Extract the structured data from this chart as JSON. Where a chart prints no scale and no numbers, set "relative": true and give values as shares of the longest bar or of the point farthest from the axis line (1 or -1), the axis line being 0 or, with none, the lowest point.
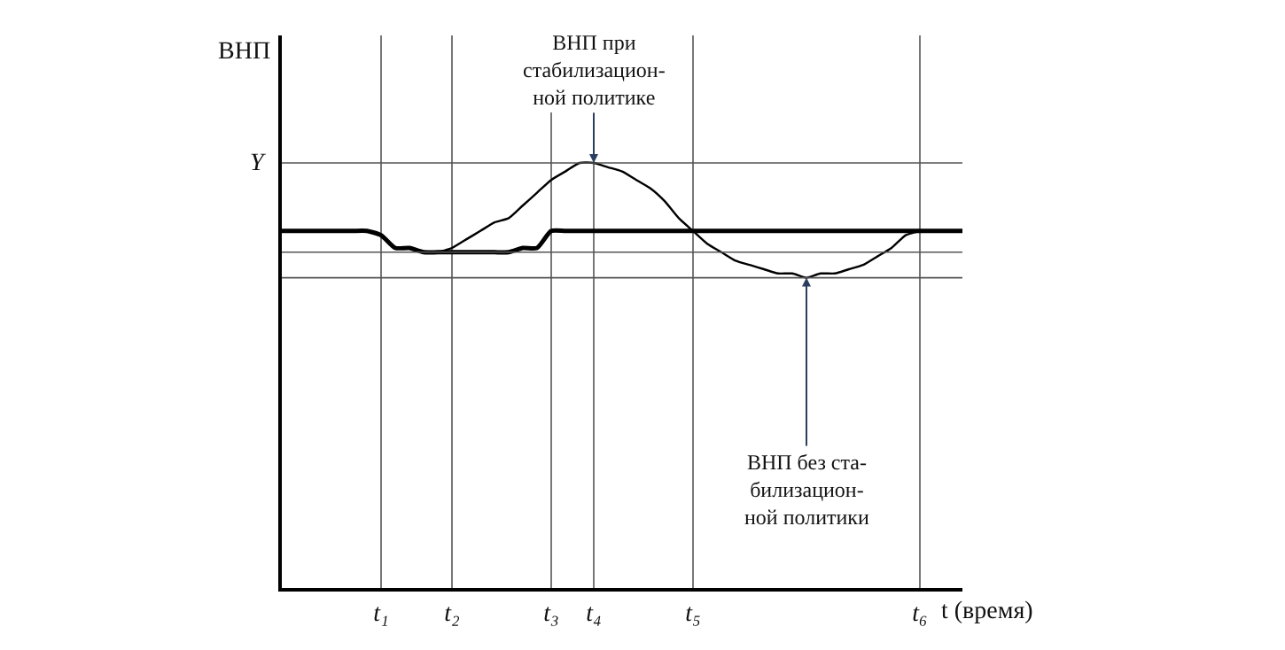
{
  "chart_data": {
    "type": "line",
    "relative": true,
    "ylabel": "ВНП",
    "xlabel": "t (время)",
    "categories": [
      null,
      null,
      null,
      null,
      null,
      null,
      null,
      "t₁",
      null,
      null,
      null,
      null,
      "t₂",
      null,
      null,
      null,
      null,
      null,
      null,
      "t₃",
      null,
      null,
      "t₄",
      null,
      null,
      null,
      null,
      null,
      null,
      "t₅",
      null,
      null,
      null,
      null,
      null,
      null,
      null,
      null,
      null,
      null,
      null,
      null,
      null,
      null,
      null,
      "t₆",
      null,
      null,
      null
    ],
    "grid": "x",
    "marker": "none",
    "line_style": "solid",
    "series": [
      {
        "color": "#000000",
        "values": [
          0.84,
          0.84,
          0.84,
          0.84,
          0.84,
          0.84,
          0.84,
          0.83,
          0.8,
          0.8,
          0.79,
          0.79,
          0.79,
          0.79,
          0.79,
          0.79,
          0.79,
          0.8,
          0.8,
          0.84,
          0.84,
          0.84,
          0.84,
          0.84,
          0.84,
          0.84,
          0.84,
          0.84,
          0.84,
          0.84,
          0.84,
          0.84,
          0.84,
          0.84,
          0.84,
          0.84,
          0.84,
          0.84,
          0.84,
          0.84,
          0.84,
          0.84,
          0.84,
          0.84,
          0.84,
          0.84,
          0.84,
          0.84,
          0.84
        ]
      },
      {
        "color": "#000000",
        "values": [
          null,
          null,
          null,
          null,
          null,
          null,
          null,
          null,
          null,
          null,
          null,
          0.79,
          0.8,
          0.82,
          0.84,
          0.86,
          0.87,
          0.9,
          0.93,
          0.96,
          0.98,
          1.0,
          1.0,
          0.99,
          0.98,
          0.96,
          0.94,
          0.91,
          0.87,
          0.84,
          0.81,
          0.79,
          0.77,
          0.76,
          0.75,
          0.74,
          0.74,
          0.73,
          0.74,
          0.74,
          0.75,
          0.76,
          0.78,
          0.8,
          0.83,
          0.84,
          null,
          null,
          null
        ]
      }
    ],
    "ref_lines": [
      {
        "axis": "y",
        "value": 1.0,
        "label": "Y",
        "color": "#555555"
      },
      {
        "axis": "y",
        "value": 0.79,
        "label": null,
        "color": "#555555"
      },
      {
        "axis": "y",
        "value": 0.73,
        "label": null,
        "color": "#555555"
      }
    ],
    "annotations": [
      {
        "text": "ВНП при\nстабилизацион-\nной политике",
        "x": "t₄",
        "y": 1.0
      },
      {
        "text": "ВНП без ста-\nбилизацион-\nной политики",
        "y": 0.73
      }
    ]
  }
}
